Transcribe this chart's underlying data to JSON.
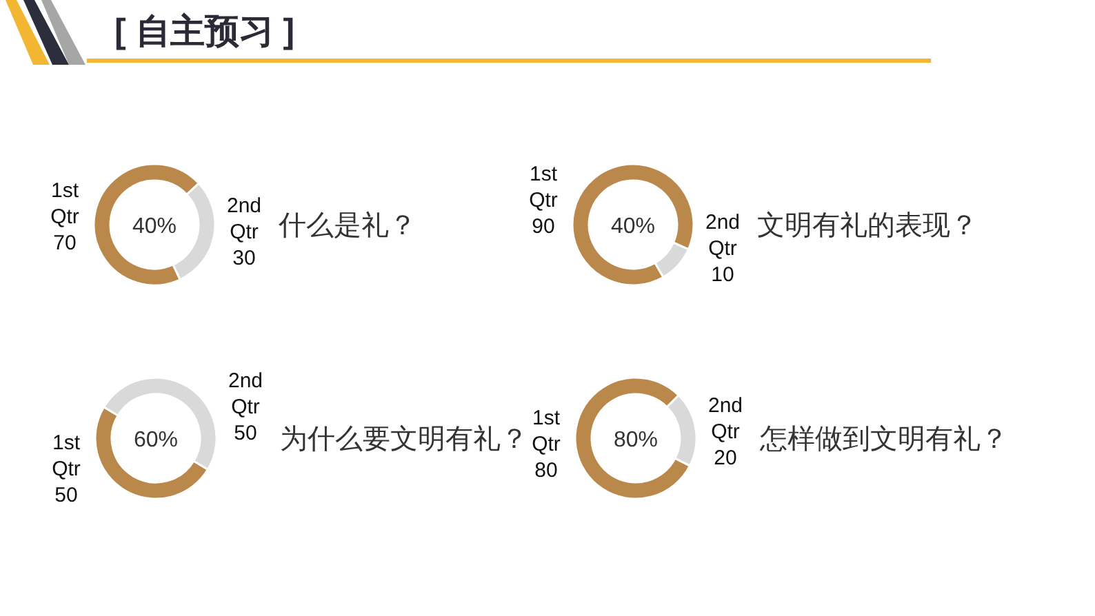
{
  "chart_data": [
    {
      "type": "other",
      "title": "[ 自主预习 ]"
    },
    {
      "type": "donut",
      "title": "什么是礼？",
      "categories": [
        "1st Qtr",
        "2nd Qtr"
      ],
      "values": [
        70,
        30
      ],
      "colors": [
        "#bb884c",
        "#d9d9d9"
      ],
      "data_labels": true,
      "annotations": [
        "40%"
      ]
    },
    {
      "type": "donut",
      "title": "文明有礼的表现？",
      "categories": [
        "1st Qtr",
        "2nd Qtr"
      ],
      "values": [
        90,
        10
      ],
      "colors": [
        "#bb884c",
        "#d9d9d9"
      ],
      "data_labels": true,
      "annotations": [
        "40%"
      ]
    },
    {
      "type": "donut",
      "title": "为什么要文明有礼？",
      "categories": [
        "1st Qtr",
        "2nd Qtr"
      ],
      "values": [
        50,
        50
      ],
      "colors": [
        "#bb884c",
        "#d9d9d9"
      ],
      "data_labels": true,
      "annotations": [
        "60%"
      ]
    },
    {
      "type": "donut",
      "title": "怎样做到文明有礼？",
      "categories": [
        "1st Qtr",
        "2nd Qtr"
      ],
      "values": [
        80,
        20
      ],
      "colors": [
        "#bb884c",
        "#d9d9d9"
      ],
      "data_labels": true,
      "annotations": [
        "80%"
      ]
    }
  ]
}
